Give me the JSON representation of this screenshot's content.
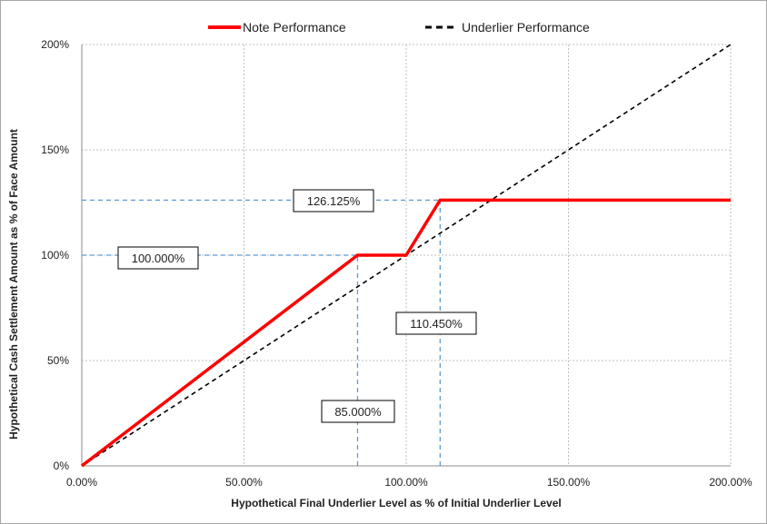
{
  "chart_data": {
    "type": "line",
    "xlabel": "Hypothetical Final Underlier Level as % of Initial Underlier Level",
    "ylabel": "Hypothetical Cash Settlement Amount as % of Face Amount",
    "xlim": [
      0,
      200
    ],
    "ylim": [
      0,
      200
    ],
    "x_ticks": [
      "0.00%",
      "50.00%",
      "100.00%",
      "150.00%",
      "200.00%"
    ],
    "y_ticks": [
      "0%",
      "50%",
      "100%",
      "150%",
      "200%"
    ],
    "x_tick_values": [
      0,
      50,
      100,
      150,
      200
    ],
    "y_tick_values": [
      0,
      50,
      100,
      150,
      200
    ],
    "grid": true,
    "legend_position": "top-center",
    "series": [
      {
        "name": "Note Performance",
        "color": "#ff0000",
        "style": "solid",
        "x": [
          0,
          85,
          100,
          110.45,
          200
        ],
        "y": [
          0,
          100,
          100,
          126.125,
          126.125
        ]
      },
      {
        "name": "Underlier Performance",
        "color": "#000000",
        "style": "dashed",
        "x": [
          0,
          200
        ],
        "y": [
          0,
          200
        ]
      }
    ],
    "reference_lines": {
      "color": "#5b9bd5",
      "horizontal": [
        100,
        126.125
      ],
      "vertical": [
        85,
        110.45
      ]
    },
    "annotations": [
      {
        "label": "126.125%",
        "x": 126.125,
        "anchor": "cap-level"
      },
      {
        "label": "100.000%",
        "x": 100,
        "anchor": "par-level"
      },
      {
        "label": "110.450%",
        "x": 110.45,
        "anchor": "cap-start"
      },
      {
        "label": "85.000%",
        "x": 85,
        "anchor": "buffer-end"
      }
    ]
  }
}
